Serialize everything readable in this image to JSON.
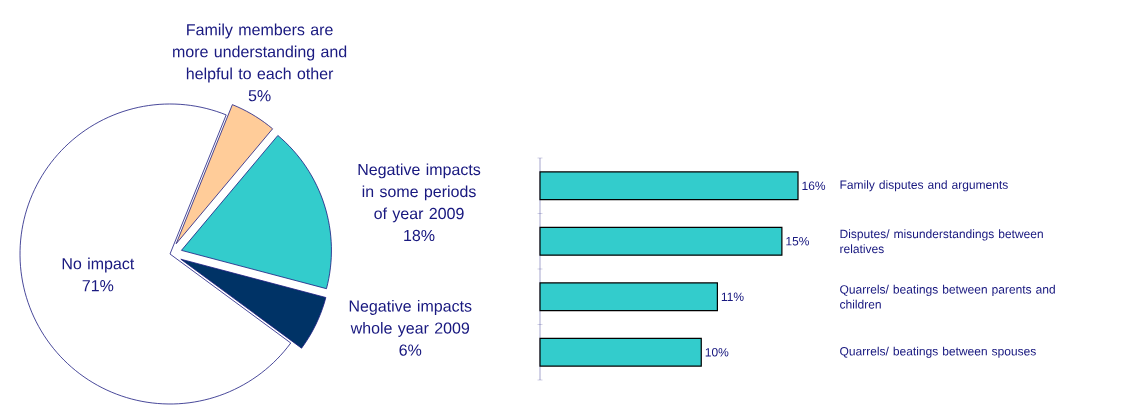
{
  "chart_data": [
    {
      "type": "pie",
      "categories": [
        "Family members are more understanding and helpful to each other",
        "Negative impacts in some periods of year 2009",
        "Negative impacts whole year 2009",
        "No impact"
      ],
      "values": [
        5,
        18,
        6,
        71
      ],
      "colors": [
        "#ffcc99",
        "#33cccc",
        "#003366",
        "#ffffff"
      ],
      "value_labels": [
        "5%",
        "18%",
        "6%",
        "71%"
      ]
    },
    {
      "type": "bar",
      "orientation": "horizontal",
      "categories": [
        "Family disputes and arguments",
        "Disputes/ misunderstandings between relatives",
        "Quarrels/ beatings between parents and children",
        "Quarrels/ beatings between spouses"
      ],
      "values": [
        16,
        15,
        11,
        10
      ],
      "color": "#33cccc",
      "value_labels": [
        "16%",
        "15%",
        "11%",
        "10%"
      ]
    }
  ]
}
